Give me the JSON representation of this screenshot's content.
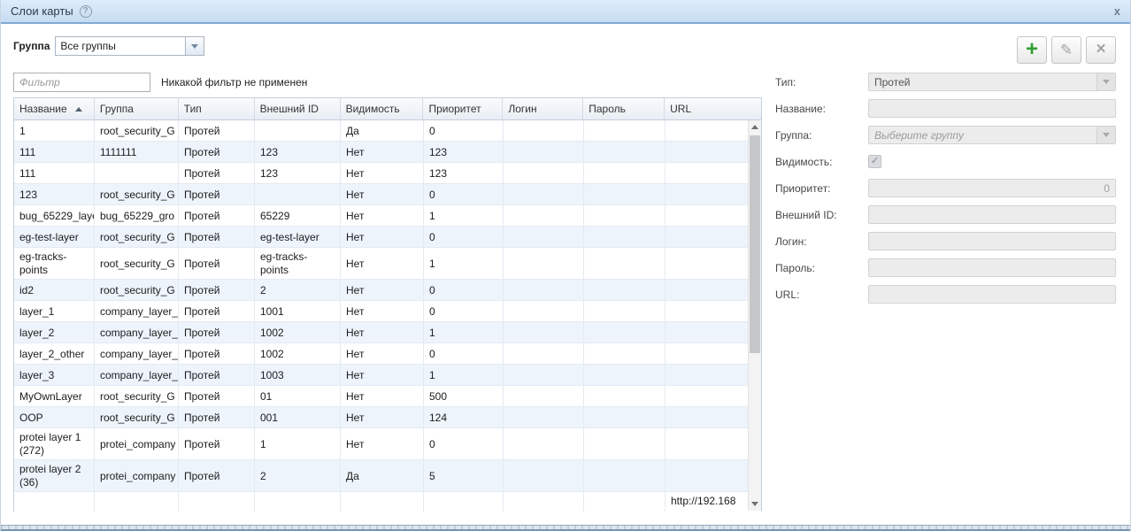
{
  "window": {
    "title": "Слои карты"
  },
  "icons": {
    "help": "?",
    "close": "x",
    "add": "+",
    "edit": "✎",
    "delete": "×",
    "check": "✓"
  },
  "toolbar": {
    "group_label": "Группа",
    "group_value": "Все группы"
  },
  "filter": {
    "placeholder": "Фильтр",
    "status": "Никакой фильтр не применен"
  },
  "grid": {
    "columns": [
      "Название",
      "Группа",
      "Тип",
      "Внешний ID",
      "Видимость",
      "Приоритет",
      "Логин",
      "Пароль",
      "URL"
    ],
    "sorted_column": "Название",
    "sort_direction": "asc",
    "rows": [
      [
        "1",
        "root_security_G",
        "Протей",
        "",
        "Да",
        "0",
        "",
        "",
        ""
      ],
      [
        "111",
        "1111111",
        "Протей",
        "123",
        "Нет",
        "123",
        "",
        "",
        ""
      ],
      [
        "111",
        "",
        "Протей",
        "123",
        "Нет",
        "123",
        "",
        "",
        ""
      ],
      [
        "123",
        "root_security_G",
        "Протей",
        "",
        "Нет",
        "0",
        "",
        "",
        ""
      ],
      [
        "bug_65229_laye",
        "bug_65229_gro",
        "Протей",
        "65229",
        "Нет",
        "1",
        "",
        "",
        ""
      ],
      [
        "eg-test-layer",
        "root_security_G",
        "Протей",
        "eg-test-layer",
        "Нет",
        "0",
        "",
        "",
        ""
      ],
      [
        "eg-tracks-points",
        "root_security_G",
        "Протей",
        "eg-tracks-points",
        "Нет",
        "1",
        "",
        "",
        ""
      ],
      [
        "id2",
        "root_security_G",
        "Протей",
        "2",
        "Нет",
        "0",
        "",
        "",
        ""
      ],
      [
        "layer_1",
        "company_layer_",
        "Протей",
        "1001",
        "Нет",
        "0",
        "",
        "",
        ""
      ],
      [
        "layer_2",
        "company_layer_",
        "Протей",
        "1002",
        "Нет",
        "1",
        "",
        "",
        ""
      ],
      [
        "layer_2_other",
        "company_layer_",
        "Протей",
        "1002",
        "Нет",
        "0",
        "",
        "",
        ""
      ],
      [
        "layer_3",
        "company_layer_",
        "Протей",
        "1003",
        "Нет",
        "1",
        "",
        "",
        ""
      ],
      [
        "MyOwnLayer",
        "root_security_G",
        "Протей",
        "01",
        "Нет",
        "500",
        "",
        "",
        ""
      ],
      [
        "OOP",
        "root_security_G",
        "Протей",
        "001",
        "Нет",
        "124",
        "",
        "",
        ""
      ],
      [
        "protei layer 1 (272)",
        "protei_company",
        "Протей",
        "1",
        "Нет",
        "0",
        "",
        "",
        ""
      ],
      [
        "protei layer 2 (36)",
        "protei_company",
        "Протей",
        "2",
        "Да",
        "5",
        "",
        "",
        ""
      ],
      [
        "",
        "",
        "",
        "",
        "",
        "",
        "",
        "",
        "http://192.168"
      ]
    ]
  },
  "form": {
    "fields": [
      {
        "key": "type",
        "label": "Тип:",
        "type": "select",
        "value": "Протей"
      },
      {
        "key": "name",
        "label": "Название:",
        "type": "text",
        "value": ""
      },
      {
        "key": "group",
        "label": "Группа:",
        "type": "select",
        "value": "",
        "placeholder": "Выберите группу"
      },
      {
        "key": "visibility",
        "label": "Видимость:",
        "type": "checkbox",
        "checked": true
      },
      {
        "key": "priority",
        "label": "Приоритет:",
        "type": "number",
        "value": "0"
      },
      {
        "key": "external_id",
        "label": "Внешний ID:",
        "type": "text",
        "value": ""
      },
      {
        "key": "login",
        "label": "Логин:",
        "type": "text",
        "value": ""
      },
      {
        "key": "password",
        "label": "Пароль:",
        "type": "text",
        "value": ""
      },
      {
        "key": "url",
        "label": "URL:",
        "type": "text",
        "value": ""
      }
    ]
  },
  "colors": {
    "titlebar_top": "#ddecfb",
    "titlebar_bottom": "#c6dcf2",
    "titlebar_border": "#82a9d3",
    "row_alt": "#edf4fc",
    "add_green": "#2f9e2f"
  }
}
